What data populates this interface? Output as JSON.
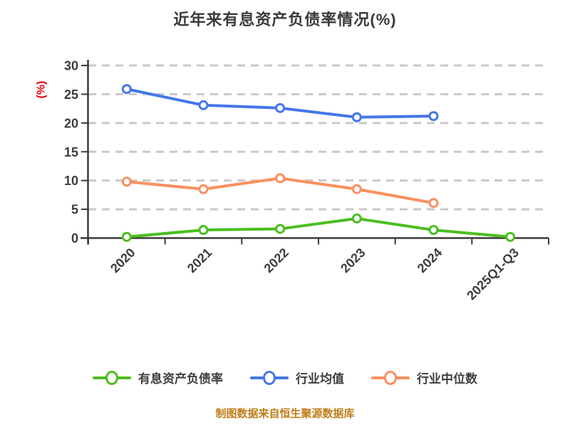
{
  "title": "近年来有息资产负债率情况(%)",
  "caption": "制图数据来自恒生聚源数据库",
  "colors": {
    "title_text": "#3a3a3a",
    "axis_text": "#3c3c3c",
    "y_unit_red": "#e60012",
    "caption_orange": "#bf7d18",
    "gridline": "#c9c9c9",
    "axis_line": "#3a3a3a",
    "series_green": "#4bbe1e",
    "series_blue": "#4377e6",
    "series_orange": "#fa8f5f"
  },
  "chart_data": {
    "type": "line",
    "title": "近年来有息资产负债率情况(%)",
    "ylabel": "(%)",
    "xlabel": "",
    "categories": [
      "2020",
      "2021",
      "2022",
      "2023",
      "2024",
      "2025Q1-Q3"
    ],
    "series": [
      {
        "name": "有息资产负债率",
        "color": "#4bbe1e",
        "values": [
          0.2,
          1.4,
          1.6,
          3.4,
          1.4,
          0.2
        ]
      },
      {
        "name": "行业均值",
        "color": "#4377e6",
        "values": [
          25.9,
          23.1,
          22.6,
          21.0,
          21.2,
          null
        ]
      },
      {
        "name": "行业中位数",
        "color": "#fa8f5f",
        "values": [
          9.8,
          8.5,
          10.4,
          8.5,
          6.1,
          null
        ]
      }
    ],
    "ylim": [
      0,
      30
    ],
    "yticks": [
      0,
      5,
      10,
      15,
      20,
      25,
      30
    ],
    "grid": "horizontal-dashed",
    "legend_position": "bottom",
    "marker": "circle-white-fill"
  }
}
